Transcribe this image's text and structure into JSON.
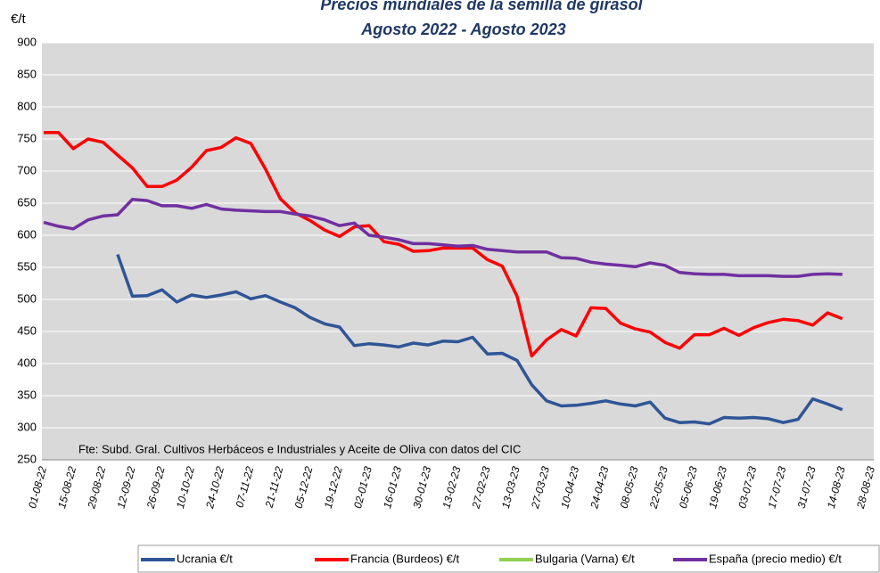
{
  "chart_data": {
    "type": "line",
    "title": "Precios mundiales de la semilla de girasol",
    "subtitle": "Agosto 2022 -  Agosto 2023",
    "y_label": "€/t",
    "annotation": "Fte: Subd. Gral. Cultivos Herbáceos e Industriales y Aceite de Oliva con datos del CIC",
    "categories": [
      "01-08-22",
      null,
      "15-08-22",
      null,
      "29-08-22",
      null,
      "12-09-22",
      null,
      "26-09-22",
      null,
      "10-10-22",
      null,
      "24-10-22",
      null,
      "07-11-22",
      null,
      "21-11-22",
      null,
      "05-12-22",
      null,
      "19-12-22",
      null,
      "02-01-23",
      null,
      "16-01-23",
      null,
      "30-01-23",
      null,
      "13-02-23",
      null,
      "27-02-23",
      null,
      "13-03-23",
      null,
      "27-03-23",
      null,
      "10-04-23",
      null,
      "24-04-23",
      null,
      "08-05-23",
      null,
      "22-05-23",
      null,
      "05-06-23",
      null,
      "19-06-23",
      null,
      "03-07-23",
      null,
      "17-07-23",
      null,
      "31-07-23",
      null,
      "14-08-23",
      null,
      "28-08-23"
    ],
    "series": [
      {
        "name": "Ucrania €/t",
        "color": "#2f5597",
        "values": [
          null,
          null,
          null,
          null,
          null,
          570,
          505,
          506,
          515,
          496,
          507,
          503,
          507,
          512,
          501,
          506,
          496,
          487,
          472,
          462,
          457,
          428,
          431,
          429,
          426,
          432,
          429,
          435,
          434,
          441,
          415,
          416,
          405,
          367,
          342,
          334,
          335,
          338,
          342,
          337,
          334,
          340,
          315,
          308,
          309,
          306,
          316,
          315,
          316,
          314,
          308,
          313,
          345,
          337,
          328,
          null,
          null
        ]
      },
      {
        "name": "Francia (Burdeos) €/t",
        "color": "#ff0000",
        "values": [
          760,
          760,
          735,
          750,
          745,
          725,
          705,
          676,
          676,
          686,
          706,
          732,
          737,
          752,
          743,
          703,
          657,
          635,
          623,
          608,
          598,
          613,
          615,
          590,
          586,
          575,
          576,
          580,
          580,
          580,
          562,
          552,
          505,
          412,
          437,
          453,
          443,
          487,
          486,
          463,
          454,
          449,
          433,
          424,
          445,
          445,
          455,
          444,
          456,
          464,
          469,
          467,
          460,
          479,
          470,
          null,
          null
        ]
      },
      {
        "name": "Bulgaria (Varna) €/t",
        "color": "#92d050",
        "values": [
          null,
          null,
          null,
          null,
          null,
          null,
          null,
          null,
          null,
          null,
          null,
          null,
          null,
          null,
          null,
          null,
          null,
          null,
          null,
          null,
          null,
          null,
          null,
          null,
          null,
          null,
          null,
          null,
          null,
          null,
          null,
          null,
          null,
          null,
          null,
          null,
          null,
          null,
          null,
          null,
          null,
          null,
          null,
          null,
          null,
          null,
          null,
          null,
          null,
          null,
          null,
          null,
          null,
          null,
          null,
          null,
          null
        ]
      },
      {
        "name": "España (precio medio) €/t",
        "color": "#7030a0",
        "values": [
          620,
          614,
          610,
          624,
          630,
          632,
          656,
          654,
          646,
          646,
          642,
          648,
          641,
          639,
          638,
          637,
          637,
          633,
          630,
          624,
          615,
          619,
          600,
          597,
          593,
          587,
          587,
          585,
          583,
          584,
          578,
          576,
          574,
          574,
          574,
          565,
          564,
          558,
          555,
          553,
          551,
          557,
          553,
          542,
          540,
          539,
          539,
          537,
          537,
          537,
          536,
          536,
          539,
          540,
          539,
          null,
          null
        ]
      }
    ],
    "ylim": [
      250,
      900
    ],
    "yticks": [
      250,
      300,
      350,
      400,
      450,
      500,
      550,
      600,
      650,
      700,
      750,
      800,
      850,
      900
    ],
    "grid": true
  }
}
